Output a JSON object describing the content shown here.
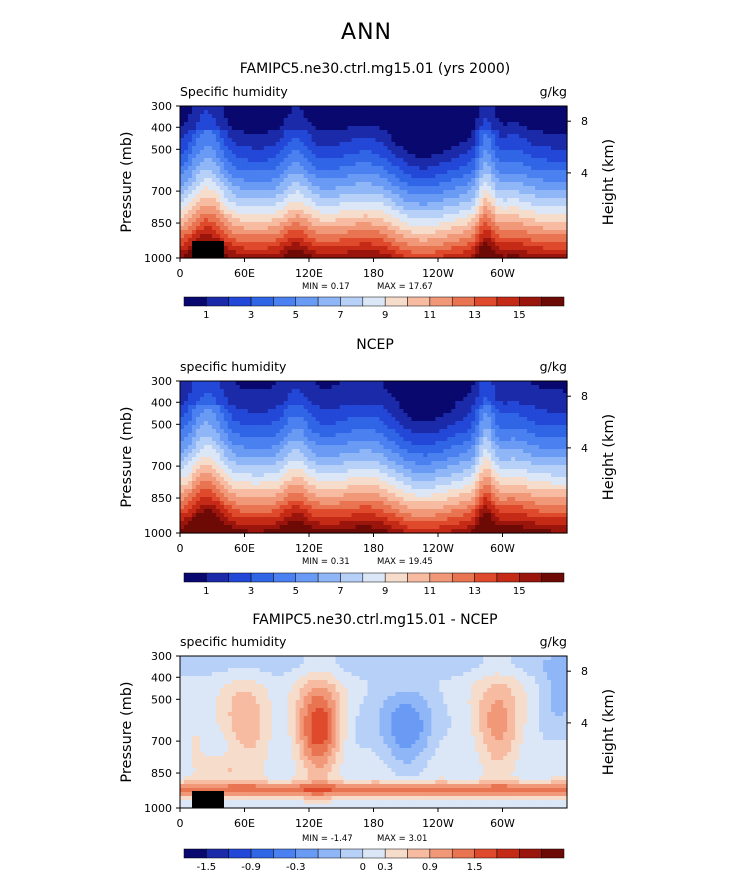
{
  "page_title": "ANN",
  "chart_data": [
    {
      "type": "heatmap",
      "title": "FAMIPC5.ne30.ctrl.mg15.01 (yrs 2000)",
      "left_label": "Specific humidity",
      "right_label": "g/kg",
      "ylabel": "Pressure (mb)",
      "ylabel_right": "Height (km)",
      "x_ticks": [
        "0",
        "60E",
        "120E",
        "180",
        "120W",
        "60W"
      ],
      "y_ticks": [
        "300",
        "400",
        "500",
        "700",
        "850",
        "1000"
      ],
      "y_ticks_right": [
        "8",
        "4"
      ],
      "ylim": [
        1000,
        300
      ],
      "min_text": "MIN =    0.17",
      "max_text": "MAX =   17.67",
      "colorbar_labels": [
        "1",
        "3",
        "5",
        "7",
        "9",
        "11",
        "13",
        "15"
      ],
      "colorbar_colors": [
        "#08086e",
        "#1a2aa8",
        "#2347d6",
        "#3065e6",
        "#4a80f0",
        "#6a9bf4",
        "#8fb6f7",
        "#b6d0f8",
        "#dbe6f6",
        "#f6dcca",
        "#f6bba1",
        "#f19878",
        "#e97451",
        "#df4a2c",
        "#c42a16",
        "#9a150c",
        "#6e0a06"
      ]
    },
    {
      "type": "heatmap",
      "title": "NCEP",
      "left_label": "specific humidity",
      "right_label": "g/kg",
      "ylabel": "Pressure (mb)",
      "ylabel_right": "Height (km)",
      "x_ticks": [
        "0",
        "60E",
        "120E",
        "180",
        "120W",
        "60W"
      ],
      "y_ticks": [
        "300",
        "400",
        "500",
        "700",
        "850",
        "1000"
      ],
      "y_ticks_right": [
        "8",
        "4"
      ],
      "ylim": [
        1000,
        300
      ],
      "min_text": "MIN =    0.31",
      "max_text": "MAX =   19.45",
      "colorbar_labels": [
        "1",
        "3",
        "5",
        "7",
        "9",
        "11",
        "13",
        "15"
      ],
      "colorbar_colors": [
        "#08086e",
        "#1a2aa8",
        "#2347d6",
        "#3065e6",
        "#4a80f0",
        "#6a9bf4",
        "#8fb6f7",
        "#b6d0f8",
        "#dbe6f6",
        "#f6dcca",
        "#f6bba1",
        "#f19878",
        "#e97451",
        "#df4a2c",
        "#c42a16",
        "#9a150c",
        "#6e0a06"
      ]
    },
    {
      "type": "heatmap",
      "title": "FAMIPC5.ne30.ctrl.mg15.01 - NCEP",
      "left_label": "specific humidity",
      "right_label": "g/kg",
      "ylabel": "Pressure (mb)",
      "ylabel_right": "Height (km)",
      "x_ticks": [
        "0",
        "60E",
        "120E",
        "180",
        "120W",
        "60W"
      ],
      "y_ticks": [
        "300",
        "400",
        "500",
        "700",
        "850",
        "1000"
      ],
      "y_ticks_right": [
        "8",
        "4"
      ],
      "ylim": [
        1000,
        300
      ],
      "min_text": "MIN =   -1.47",
      "max_text": "MAX =    3.01",
      "colorbar_labels": [
        "-1.5",
        "-0.9",
        "-0.3",
        "0",
        "0.3",
        "0.9",
        "1.5"
      ],
      "colorbar_colors": [
        "#08086e",
        "#1a2aa8",
        "#2347d6",
        "#3065e6",
        "#4a80f0",
        "#6a9bf4",
        "#8fb6f7",
        "#b6d0f8",
        "#dbe6f6",
        "#f6dcca",
        "#f6bba1",
        "#f19878",
        "#e97451",
        "#df4a2c",
        "#c42a16",
        "#9a150c",
        "#6e0a06"
      ]
    }
  ]
}
